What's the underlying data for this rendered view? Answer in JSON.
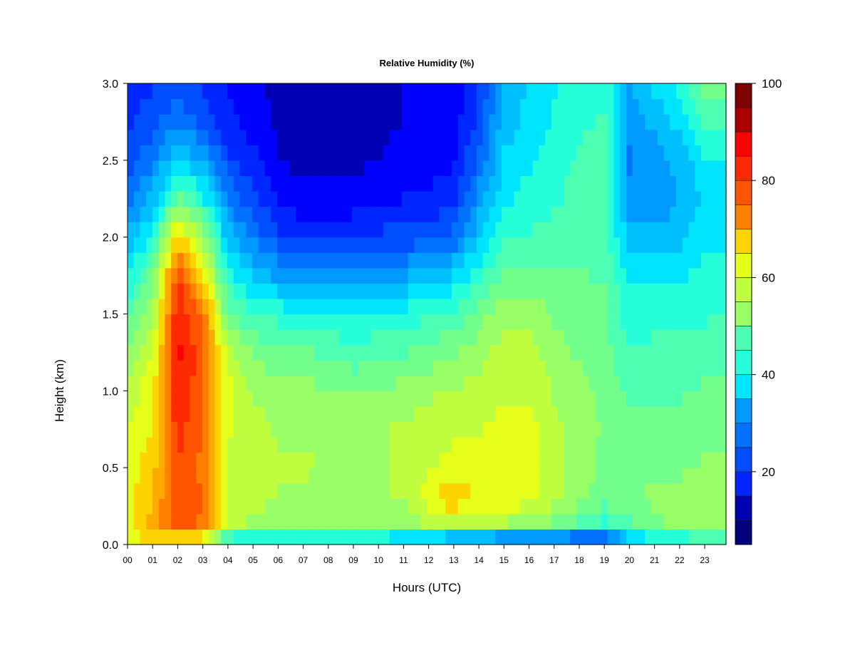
{
  "chart_data": {
    "type": "heatmap",
    "title": "Relative Humidity (%)",
    "xlabel": "Hours (UTC)",
    "ylabel": "Height (km)",
    "xlim": [
      0,
      23.85
    ],
    "ylim": [
      0.0,
      3.0
    ],
    "x_ticks": [
      "00",
      "01",
      "02",
      "03",
      "04",
      "05",
      "06",
      "07",
      "08",
      "09",
      "10",
      "11",
      "12",
      "13",
      "14",
      "15",
      "16",
      "17",
      "18",
      "19",
      "20",
      "21",
      "22",
      "23"
    ],
    "y_ticks": [
      "0.0",
      "0.5",
      "1.0",
      "1.5",
      "2.0",
      "2.5",
      "3.0"
    ],
    "colorbar": {
      "range": [
        5,
        100
      ],
      "ticks": [
        "20",
        "40",
        "60",
        "80",
        "100"
      ],
      "levels": [
        5,
        10,
        15,
        20,
        25,
        30,
        35,
        40,
        45,
        50,
        55,
        60,
        65,
        70,
        75,
        80,
        85,
        90,
        95,
        100
      ],
      "colors": [
        "#00007f",
        "#0000b3",
        "#0000ff",
        "#0026ff",
        "#004cff",
        "#0072ff",
        "#0099ff",
        "#00bfff",
        "#00e5ff",
        "#26ffd9",
        "#4cffb3",
        "#72ff8c",
        "#99ff66",
        "#bfff40",
        "#e5ff1a",
        "#ffd400",
        "#ffaa00",
        "#ff7f00",
        "#ff5500",
        "#ff2a00",
        "#ff0000",
        "#d40000",
        "#aa0000",
        "#7f0000"
      ]
    },
    "height_levels_km": [
      0.05,
      0.15,
      0.3,
      0.5,
      0.75,
      1.0,
      1.25,
      1.5,
      1.75,
      2.0,
      2.25,
      2.5,
      2.75,
      3.0
    ],
    "hours_utc": [
      0,
      1,
      2,
      3,
      4,
      5,
      6,
      7,
      8,
      9,
      10,
      11,
      12,
      13,
      14,
      15,
      16,
      17,
      18,
      19,
      20,
      21,
      22,
      23
    ],
    "rh_percent_by_hour": [
      [
        62,
        63,
        63,
        62,
        60,
        58,
        54,
        48,
        40,
        33,
        27,
        22,
        20,
        19
      ],
      [
        66,
        70,
        68,
        67,
        65,
        63,
        60,
        55,
        50,
        42,
        34,
        28,
        23,
        20
      ],
      [
        68,
        80,
        80,
        80,
        82,
        84,
        85,
        84,
        80,
        67,
        50,
        38,
        28,
        22
      ],
      [
        66,
        75,
        76,
        75,
        76,
        77,
        78,
        75,
        66,
        55,
        42,
        32,
        24,
        20
      ],
      [
        45,
        58,
        60,
        60,
        61,
        62,
        58,
        50,
        42,
        35,
        28,
        22,
        18,
        16
      ],
      [
        42,
        56,
        58,
        58,
        58,
        56,
        52,
        45,
        36,
        28,
        22,
        18,
        15,
        14
      ],
      [
        42,
        54,
        56,
        57,
        56,
        54,
        50,
        43,
        32,
        22,
        16,
        13,
        12,
        12
      ],
      [
        42,
        54,
        56,
        57,
        56,
        54,
        49,
        42,
        30,
        19,
        14,
        12,
        11,
        11
      ],
      [
        42,
        54,
        55,
        56,
        56,
        53,
        48,
        41,
        30,
        19,
        14,
        12,
        11,
        11
      ],
      [
        41,
        53,
        55,
        55,
        55,
        52,
        46,
        40,
        30,
        20,
        15,
        12,
        11,
        11
      ],
      [
        41,
        53,
        56,
        56,
        56,
        53,
        47,
        42,
        32,
        22,
        16,
        13,
        12,
        12
      ],
      [
        40,
        54,
        57,
        57,
        57,
        54,
        48,
        42,
        32,
        22,
        17,
        14,
        13,
        13
      ],
      [
        38,
        58,
        63,
        60,
        58,
        56,
        50,
        44,
        35,
        24,
        18,
        15,
        14,
        14
      ],
      [
        36,
        60,
        68,
        63,
        59,
        57,
        52,
        46,
        37,
        26,
        19,
        16,
        15,
        15
      ],
      [
        34,
        58,
        64,
        62,
        60,
        58,
        55,
        50,
        43,
        36,
        30,
        26,
        22,
        20
      ],
      [
        32,
        57,
        64,
        63,
        62,
        60,
        58,
        56,
        50,
        44,
        40,
        37,
        35,
        33
      ],
      [
        31,
        55,
        62,
        62,
        62,
        60,
        58,
        56,
        50,
        45,
        42,
        40,
        38,
        37
      ],
      [
        30,
        52,
        58,
        58,
        57,
        56,
        54,
        52,
        49,
        46,
        44,
        43,
        41,
        40
      ],
      [
        28,
        48,
        54,
        55,
        55,
        54,
        52,
        51,
        49,
        47,
        46,
        45,
        44,
        42
      ],
      [
        27,
        44,
        50,
        51,
        52,
        51,
        50,
        50,
        48,
        47,
        47,
        46,
        45,
        44
      ],
      [
        38,
        48,
        52,
        52,
        50,
        48,
        45,
        42,
        40,
        35,
        30,
        28,
        30,
        32
      ],
      [
        42,
        52,
        53,
        52,
        50,
        48,
        46,
        43,
        40,
        34,
        30,
        30,
        34,
        38
      ],
      [
        44,
        54,
        54,
        52,
        50,
        48,
        46,
        43,
        40,
        35,
        33,
        34,
        38,
        42
      ],
      [
        46,
        55,
        55,
        53,
        51,
        49,
        47,
        44,
        42,
        40,
        38,
        40,
        45,
        52
      ]
    ]
  }
}
